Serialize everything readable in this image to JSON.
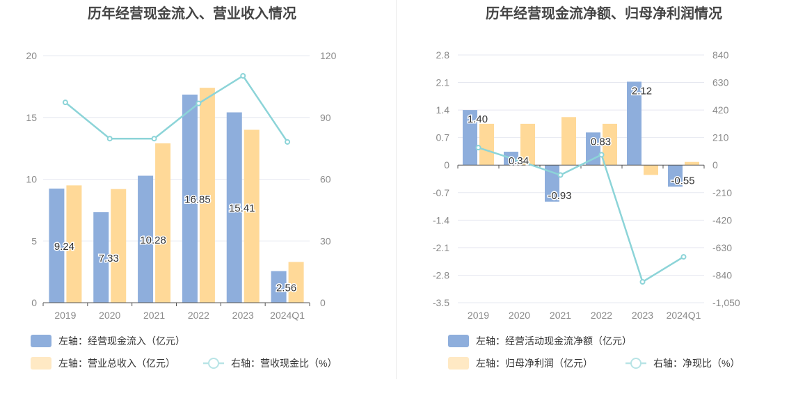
{
  "colors": {
    "bar_primary": "#8eaedc",
    "bar_secondary": "#ffd998",
    "line": "#8cd4d8",
    "legend_secondary_swatch": "#ffe9c4",
    "legend_line": "#b8e4e6",
    "grid": "#e6e8f0",
    "axis": "#555555",
    "tick_text": "#8a8a8a",
    "title_text": "#444444",
    "label_text": "#333333"
  },
  "chart_data": [
    {
      "type": "bar",
      "title": "历年经营现金流入、营业收入情况",
      "categories": [
        "2019",
        "2020",
        "2021",
        "2022",
        "2023",
        "2024Q1"
      ],
      "left_axis": {
        "ylim": [
          0,
          20
        ],
        "ticks": [
          "20",
          "15",
          "10",
          "5",
          "0"
        ],
        "tick_values": [
          20,
          15,
          10,
          5,
          0
        ]
      },
      "right_axis": {
        "ylim": [
          0,
          120
        ],
        "ticks": [
          "120",
          "90",
          "60",
          "30",
          "0"
        ],
        "tick_values": [
          120,
          90,
          60,
          30,
          0
        ]
      },
      "series": [
        {
          "name": "经营现金流入",
          "axis": "left",
          "kind": "bar",
          "values": [
            9.24,
            7.33,
            10.28,
            16.85,
            15.41,
            2.56
          ],
          "data_labels": [
            "9.24",
            "7.33",
            "10.28",
            "16.85",
            "15.41",
            "2.56"
          ]
        },
        {
          "name": "营业总收入",
          "axis": "left",
          "kind": "bar",
          "values": [
            9.5,
            9.2,
            12.9,
            17.4,
            14.0,
            3.3
          ]
        },
        {
          "name": "营收现金比",
          "axis": "right",
          "kind": "line",
          "values": [
            97.3,
            79.7,
            79.7,
            96.8,
            110.2,
            78.1
          ]
        }
      ],
      "legend": [
        {
          "text": "左轴：经营现金流入（亿元）",
          "kind": "bar_primary"
        },
        {
          "text": "左轴：营业总收入（亿元）",
          "kind": "bar_secondary"
        },
        {
          "text": "右轴：营收现金比（%）",
          "kind": "line"
        }
      ]
    },
    {
      "type": "bar",
      "title": "历年经营现金流净额、归母净利润情况",
      "categories": [
        "2019",
        "2020",
        "2021",
        "2022",
        "2023",
        "2024Q1"
      ],
      "left_axis": {
        "ylim": [
          -3.5,
          2.8
        ],
        "ticks": [
          "2.8",
          "2.1",
          "1.4",
          "0.7",
          "0",
          "-0.7",
          "-1.4",
          "-2.1",
          "-2.8",
          "-3.5"
        ],
        "tick_values": [
          2.8,
          2.1,
          1.4,
          0.7,
          0,
          -0.7,
          -1.4,
          -2.1,
          -2.8,
          -3.5
        ]
      },
      "right_axis": {
        "ylim": [
          -1050,
          840
        ],
        "ticks": [
          "840",
          "630",
          "420",
          "210",
          "0",
          "-210",
          "-420",
          "-630",
          "-840",
          "-1,050"
        ],
        "tick_values": [
          840,
          630,
          420,
          210,
          0,
          -210,
          -420,
          -630,
          -840,
          -1050
        ]
      },
      "series": [
        {
          "name": "经营活动现金流净额",
          "axis": "left",
          "kind": "bar",
          "values": [
            1.4,
            0.34,
            -0.93,
            0.83,
            2.12,
            -0.55
          ],
          "data_labels": [
            "1.40",
            "0.34",
            "-0.93",
            "0.83",
            "2.12",
            "-0.55"
          ]
        },
        {
          "name": "归母净利润",
          "axis": "left",
          "kind": "bar",
          "values": [
            1.05,
            1.05,
            1.22,
            1.05,
            -0.25,
            0.08
          ]
        },
        {
          "name": "净现比",
          "axis": "right",
          "kind": "line",
          "values": [
            133,
            32,
            -76,
            79,
            -891,
            -700
          ]
        }
      ],
      "legend": [
        {
          "text": "左轴：经营活动现金流净额（亿元）",
          "kind": "bar_primary"
        },
        {
          "text": "左轴：归母净利润（亿元）",
          "kind": "bar_secondary"
        },
        {
          "text": "右轴：净现比（%）",
          "kind": "line"
        }
      ]
    }
  ]
}
